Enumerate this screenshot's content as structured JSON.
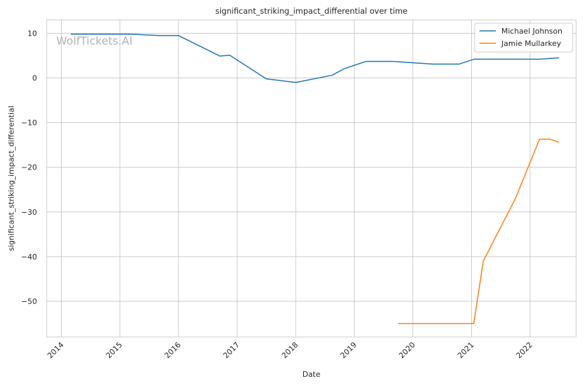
{
  "chart_data": {
    "type": "line",
    "title": "significant_striking_impact_differential over time",
    "xlabel": "Date",
    "ylabel": "significant_striking_impact_differential",
    "watermark": "WolfTickets.AI",
    "xlim": [
      "2013-10-01",
      "2022-10-15"
    ],
    "ylim": [
      -58,
      13
    ],
    "x_ticks": [
      "2014",
      "2015",
      "2016",
      "2017",
      "2018",
      "2019",
      "2020",
      "2021",
      "2022"
    ],
    "y_ticks": [
      10,
      0,
      -10,
      -20,
      -30,
      -40,
      -50
    ],
    "grid": true,
    "legend": "top-right",
    "series": [
      {
        "name": "Michael Johnson",
        "color": "#1f77b4",
        "points": [
          [
            "2014-03-01",
            9.8
          ],
          [
            "2015-03-01",
            9.8
          ],
          [
            "2015-09-01",
            9.5
          ],
          [
            "2016-01-01",
            9.5
          ],
          [
            "2016-09-15",
            4.9
          ],
          [
            "2016-11-15",
            5.1
          ],
          [
            "2017-07-01",
            -0.2
          ],
          [
            "2018-01-01",
            -1.0
          ],
          [
            "2018-08-15",
            0.6
          ],
          [
            "2018-11-01",
            2.1
          ],
          [
            "2019-03-15",
            3.7
          ],
          [
            "2019-09-01",
            3.7
          ],
          [
            "2020-05-01",
            3.1
          ],
          [
            "2020-10-15",
            3.1
          ],
          [
            "2021-01-15",
            4.2
          ],
          [
            "2022-03-01",
            4.2
          ],
          [
            "2022-07-01",
            4.5
          ]
        ]
      },
      {
        "name": "Jamie Mullarkey",
        "color": "#ff7f0e",
        "points": [
          [
            "2019-10-01",
            -55.0
          ],
          [
            "2021-01-15",
            -55.0
          ],
          [
            "2021-03-15",
            -41.0
          ],
          [
            "2021-10-01",
            -27.0
          ],
          [
            "2022-03-01",
            -13.7
          ],
          [
            "2022-05-01",
            -13.7
          ],
          [
            "2022-07-01",
            -14.4
          ]
        ]
      }
    ]
  }
}
